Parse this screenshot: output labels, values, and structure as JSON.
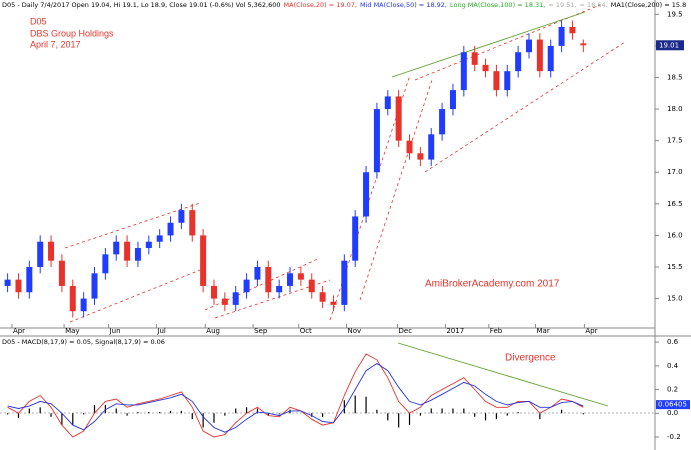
{
  "chart_data": {
    "type": "candlestick",
    "header_segments": [
      {
        "text": "D05 - Daily 7/4/2017 Open 19.04, Hi 19.1, Lo 18.9, Close 19.01 (-0.6%) Vol 5,362,600",
        "color": "#000000"
      },
      {
        "text": "MA(Close,20) = 19.07,",
        "color": "#e8322b"
      },
      {
        "text": "Mid MA(Close,50) = 18.92,",
        "color": "#2233dd"
      },
      {
        "text": "Long MA(Close,100) = 18.31,",
        "color": "#22aa22"
      },
      {
        "text": "= 19.51,",
        "color": "#aaaaaa"
      },
      {
        "text": "= 18.64,",
        "color": "#aaaaaa"
      },
      {
        "text": "MA1(Close,200) = 15.8",
        "color": "#000000"
      }
    ],
    "annotations": [
      "D05",
      "DBS Group Holdings",
      "April 7, 2017"
    ],
    "watermark": "AmiBrokerAcademy.com  2017",
    "up_color": "#1f3cff",
    "down_color": "#e8322b",
    "open": [
      15.2,
      15.3,
      15.1,
      15.5,
      15.9,
      15.6,
      15.2,
      14.8,
      15.0,
      15.4,
      15.7,
      15.9,
      15.6,
      15.8,
      15.9,
      16.0,
      16.2,
      16.4,
      16.0,
      15.2,
      15.0,
      14.9,
      15.1,
      15.3,
      15.5,
      15.1,
      15.2,
      15.4,
      15.3,
      15.1,
      14.95,
      14.9,
      15.6,
      16.3,
      17.0,
      18.0,
      18.2,
      17.5,
      17.3,
      17.2,
      17.6,
      18.0,
      18.3,
      18.9,
      18.7,
      18.6,
      18.3,
      18.6,
      18.9,
      19.1,
      18.6,
      19.0,
      19.3,
      19.04
    ],
    "high": [
      15.4,
      15.4,
      15.6,
      16.0,
      16.0,
      15.7,
      15.3,
      15.1,
      15.5,
      15.8,
      16.0,
      16.0,
      15.9,
      16.0,
      16.1,
      16.3,
      16.5,
      16.5,
      16.1,
      15.3,
      15.1,
      15.2,
      15.4,
      15.6,
      15.6,
      15.3,
      15.5,
      15.5,
      15.4,
      15.2,
      15.05,
      15.7,
      16.4,
      17.1,
      18.1,
      18.3,
      18.3,
      17.6,
      17.4,
      17.7,
      18.1,
      18.4,
      19.0,
      19.0,
      18.8,
      18.7,
      18.7,
      19.0,
      19.2,
      19.2,
      19.1,
      19.4,
      19.4,
      19.1
    ],
    "low": [
      15.1,
      15.0,
      15.0,
      15.4,
      15.5,
      15.1,
      14.7,
      14.7,
      14.9,
      15.3,
      15.6,
      15.5,
      15.5,
      15.7,
      15.8,
      15.9,
      16.1,
      15.9,
      15.1,
      14.9,
      14.8,
      14.8,
      15.0,
      15.2,
      15.0,
      15.0,
      15.1,
      15.2,
      15.0,
      14.85,
      14.8,
      14.8,
      15.5,
      16.2,
      16.9,
      17.9,
      17.4,
      17.2,
      17.1,
      17.1,
      17.5,
      17.9,
      18.2,
      18.6,
      18.5,
      18.2,
      18.2,
      18.5,
      18.8,
      18.5,
      18.5,
      18.9,
      19.1,
      18.9
    ],
    "close": [
      15.3,
      15.1,
      15.5,
      15.9,
      15.6,
      15.2,
      14.8,
      15.0,
      15.4,
      15.7,
      15.9,
      15.6,
      15.8,
      15.9,
      16.0,
      16.2,
      16.4,
      16.0,
      15.2,
      15.0,
      14.9,
      15.1,
      15.3,
      15.5,
      15.1,
      15.2,
      15.4,
      15.3,
      15.1,
      14.95,
      14.9,
      15.6,
      16.3,
      17.0,
      18.0,
      18.2,
      17.5,
      17.3,
      17.2,
      17.6,
      18.0,
      18.3,
      18.9,
      18.7,
      18.6,
      18.3,
      18.6,
      18.9,
      19.1,
      18.6,
      19.0,
      19.3,
      19.2,
      19.01
    ],
    "ylim": [
      14.55,
      19.6
    ],
    "yticks": [
      {
        "value": 15,
        "label": "15.0"
      },
      15.5,
      {
        "value": 16,
        "label": "16.0"
      },
      16.5,
      {
        "value": 17,
        "label": "17.0"
      },
      17.5,
      {
        "value": 18,
        "label": "18.0"
      },
      18.5,
      {
        "value": 19,
        "label": "19.0"
      },
      19.5
    ],
    "xlim": [
      -0.7,
      59.6
    ],
    "xticks": [
      {
        "value": 0.4,
        "label": "Apr"
      },
      {
        "value": 5.2,
        "label": "May"
      },
      {
        "value": 9.3,
        "label": "Jun"
      },
      {
        "value": 13.7,
        "label": "Jul"
      },
      {
        "value": 18.2,
        "label": "Aug"
      },
      {
        "value": 22.6,
        "label": "Sep"
      },
      {
        "value": 26.8,
        "label": "Oct"
      },
      {
        "value": 31.2,
        "label": "Nov"
      },
      {
        "value": 35.9,
        "label": "Dec"
      },
      {
        "value": 40.3,
        "label": "2017"
      },
      {
        "value": 44.3,
        "label": "Feb"
      },
      {
        "value": 48.6,
        "label": "Mar"
      },
      {
        "value": 53.1,
        "label": "Apr"
      }
    ],
    "macd_panel": {
      "title": "D05 - MACD(8,17,9) = 0.05, Signal(8,17,9) = 0.06",
      "annotation": "Divergence",
      "last_label": "0.06405",
      "ylim": [
        -0.31,
        0.66
      ],
      "yticks": [
        0.6,
        0.4,
        0.2,
        {
          "value": 0,
          "label": "0.0"
        },
        -0.2
      ],
      "series": [
        {
          "name": "MACD",
          "color": "#e8322b",
          "values": [
            0.05,
            0.0,
            0.1,
            0.15,
            0.05,
            -0.1,
            -0.2,
            -0.15,
            0.0,
            0.1,
            0.12,
            0.05,
            0.08,
            0.1,
            0.12,
            0.15,
            0.18,
            0.05,
            -0.15,
            -0.2,
            -0.18,
            -0.08,
            0.0,
            0.05,
            -0.02,
            -0.03,
            0.05,
            0.02,
            -0.05,
            -0.1,
            -0.08,
            0.15,
            0.35,
            0.5,
            0.45,
            0.3,
            0.1,
            0.0,
            0.05,
            0.15,
            0.2,
            0.25,
            0.3,
            0.2,
            0.1,
            0.05,
            0.05,
            0.1,
            0.1,
            0.0,
            0.05,
            0.12,
            0.1,
            0.05
          ]
        },
        {
          "name": "Signal",
          "color": "#2233dd",
          "values": [
            0.06,
            0.04,
            0.06,
            0.1,
            0.08,
            0.0,
            -0.1,
            -0.14,
            -0.07,
            0.03,
            0.08,
            0.07,
            0.07,
            0.09,
            0.11,
            0.13,
            0.16,
            0.1,
            -0.03,
            -0.12,
            -0.16,
            -0.12,
            -0.05,
            0.01,
            0.0,
            -0.02,
            0.02,
            0.02,
            -0.02,
            -0.07,
            -0.08,
            0.04,
            0.2,
            0.36,
            0.42,
            0.36,
            0.22,
            0.1,
            0.07,
            0.11,
            0.16,
            0.21,
            0.26,
            0.23,
            0.16,
            0.1,
            0.07,
            0.09,
            0.1,
            0.05,
            0.05,
            0.09,
            0.1,
            0.06
          ]
        }
      ],
      "histogram": [
        -0.01,
        -0.04,
        0.04,
        0.05,
        -0.03,
        -0.1,
        -0.1,
        -0.01,
        0.07,
        0.07,
        0.04,
        -0.02,
        0.01,
        0.01,
        0.01,
        0.02,
        0.02,
        -0.05,
        -0.12,
        -0.08,
        -0.02,
        0.04,
        0.05,
        0.04,
        -0.02,
        -0.01,
        0.03,
        0.0,
        -0.03,
        -0.03,
        0.0,
        0.11,
        0.15,
        0.14,
        0.03,
        -0.06,
        -0.12,
        -0.1,
        -0.02,
        0.04,
        0.04,
        0.04,
        0.04,
        -0.03,
        -0.06,
        -0.05,
        -0.02,
        0.01,
        0.0,
        -0.05,
        0.0,
        0.03,
        0.0,
        -0.01
      ],
      "histogram_color": "#000000"
    }
  }
}
